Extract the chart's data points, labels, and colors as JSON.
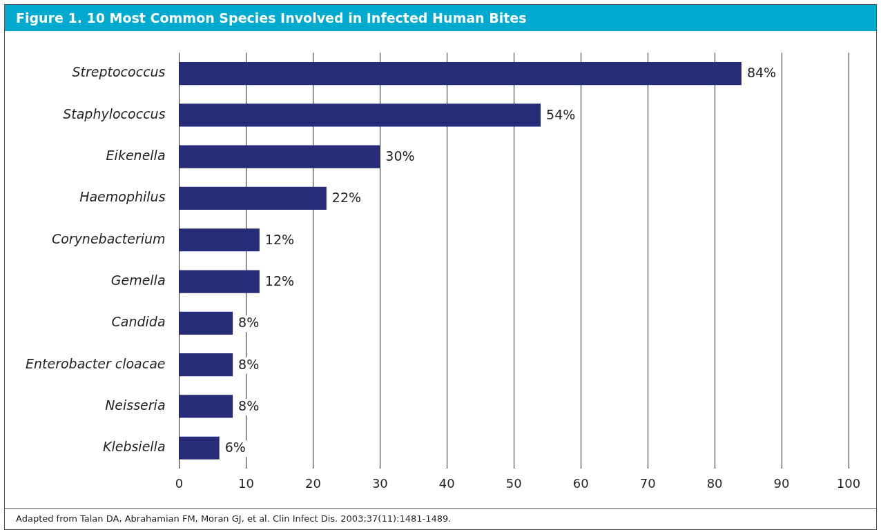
{
  "chart_data": {
    "type": "bar",
    "title": "Figure 1. 10 Most Common Species Involved in Infected Human Bites",
    "orientation": "horizontal",
    "categories": [
      "Streptococcus",
      "Staphylococcus",
      "Eikenella",
      "Haemophilus",
      "Corynebacterium",
      "Gemella",
      "Candida",
      "Enterobacter cloacae",
      "Neisseria",
      "Klebsiella"
    ],
    "values": [
      84,
      54,
      30,
      22,
      12,
      12,
      8,
      8,
      8,
      6
    ],
    "value_labels": [
      "84%",
      "54%",
      "30%",
      "22%",
      "12%",
      "12%",
      "8%",
      "8%",
      "8%",
      "6%"
    ],
    "color": "#272c78",
    "xlim": [
      0,
      100
    ],
    "xticks": [
      0,
      10,
      20,
      30,
      40,
      50,
      60,
      70,
      80,
      90,
      100
    ],
    "grid": "x",
    "annotations": [
      "Adapted from Talan DA, Abrahamian FM, Moran GJ, et al. Clin Infect Dis. 2003;37(11):1481-1489."
    ]
  }
}
